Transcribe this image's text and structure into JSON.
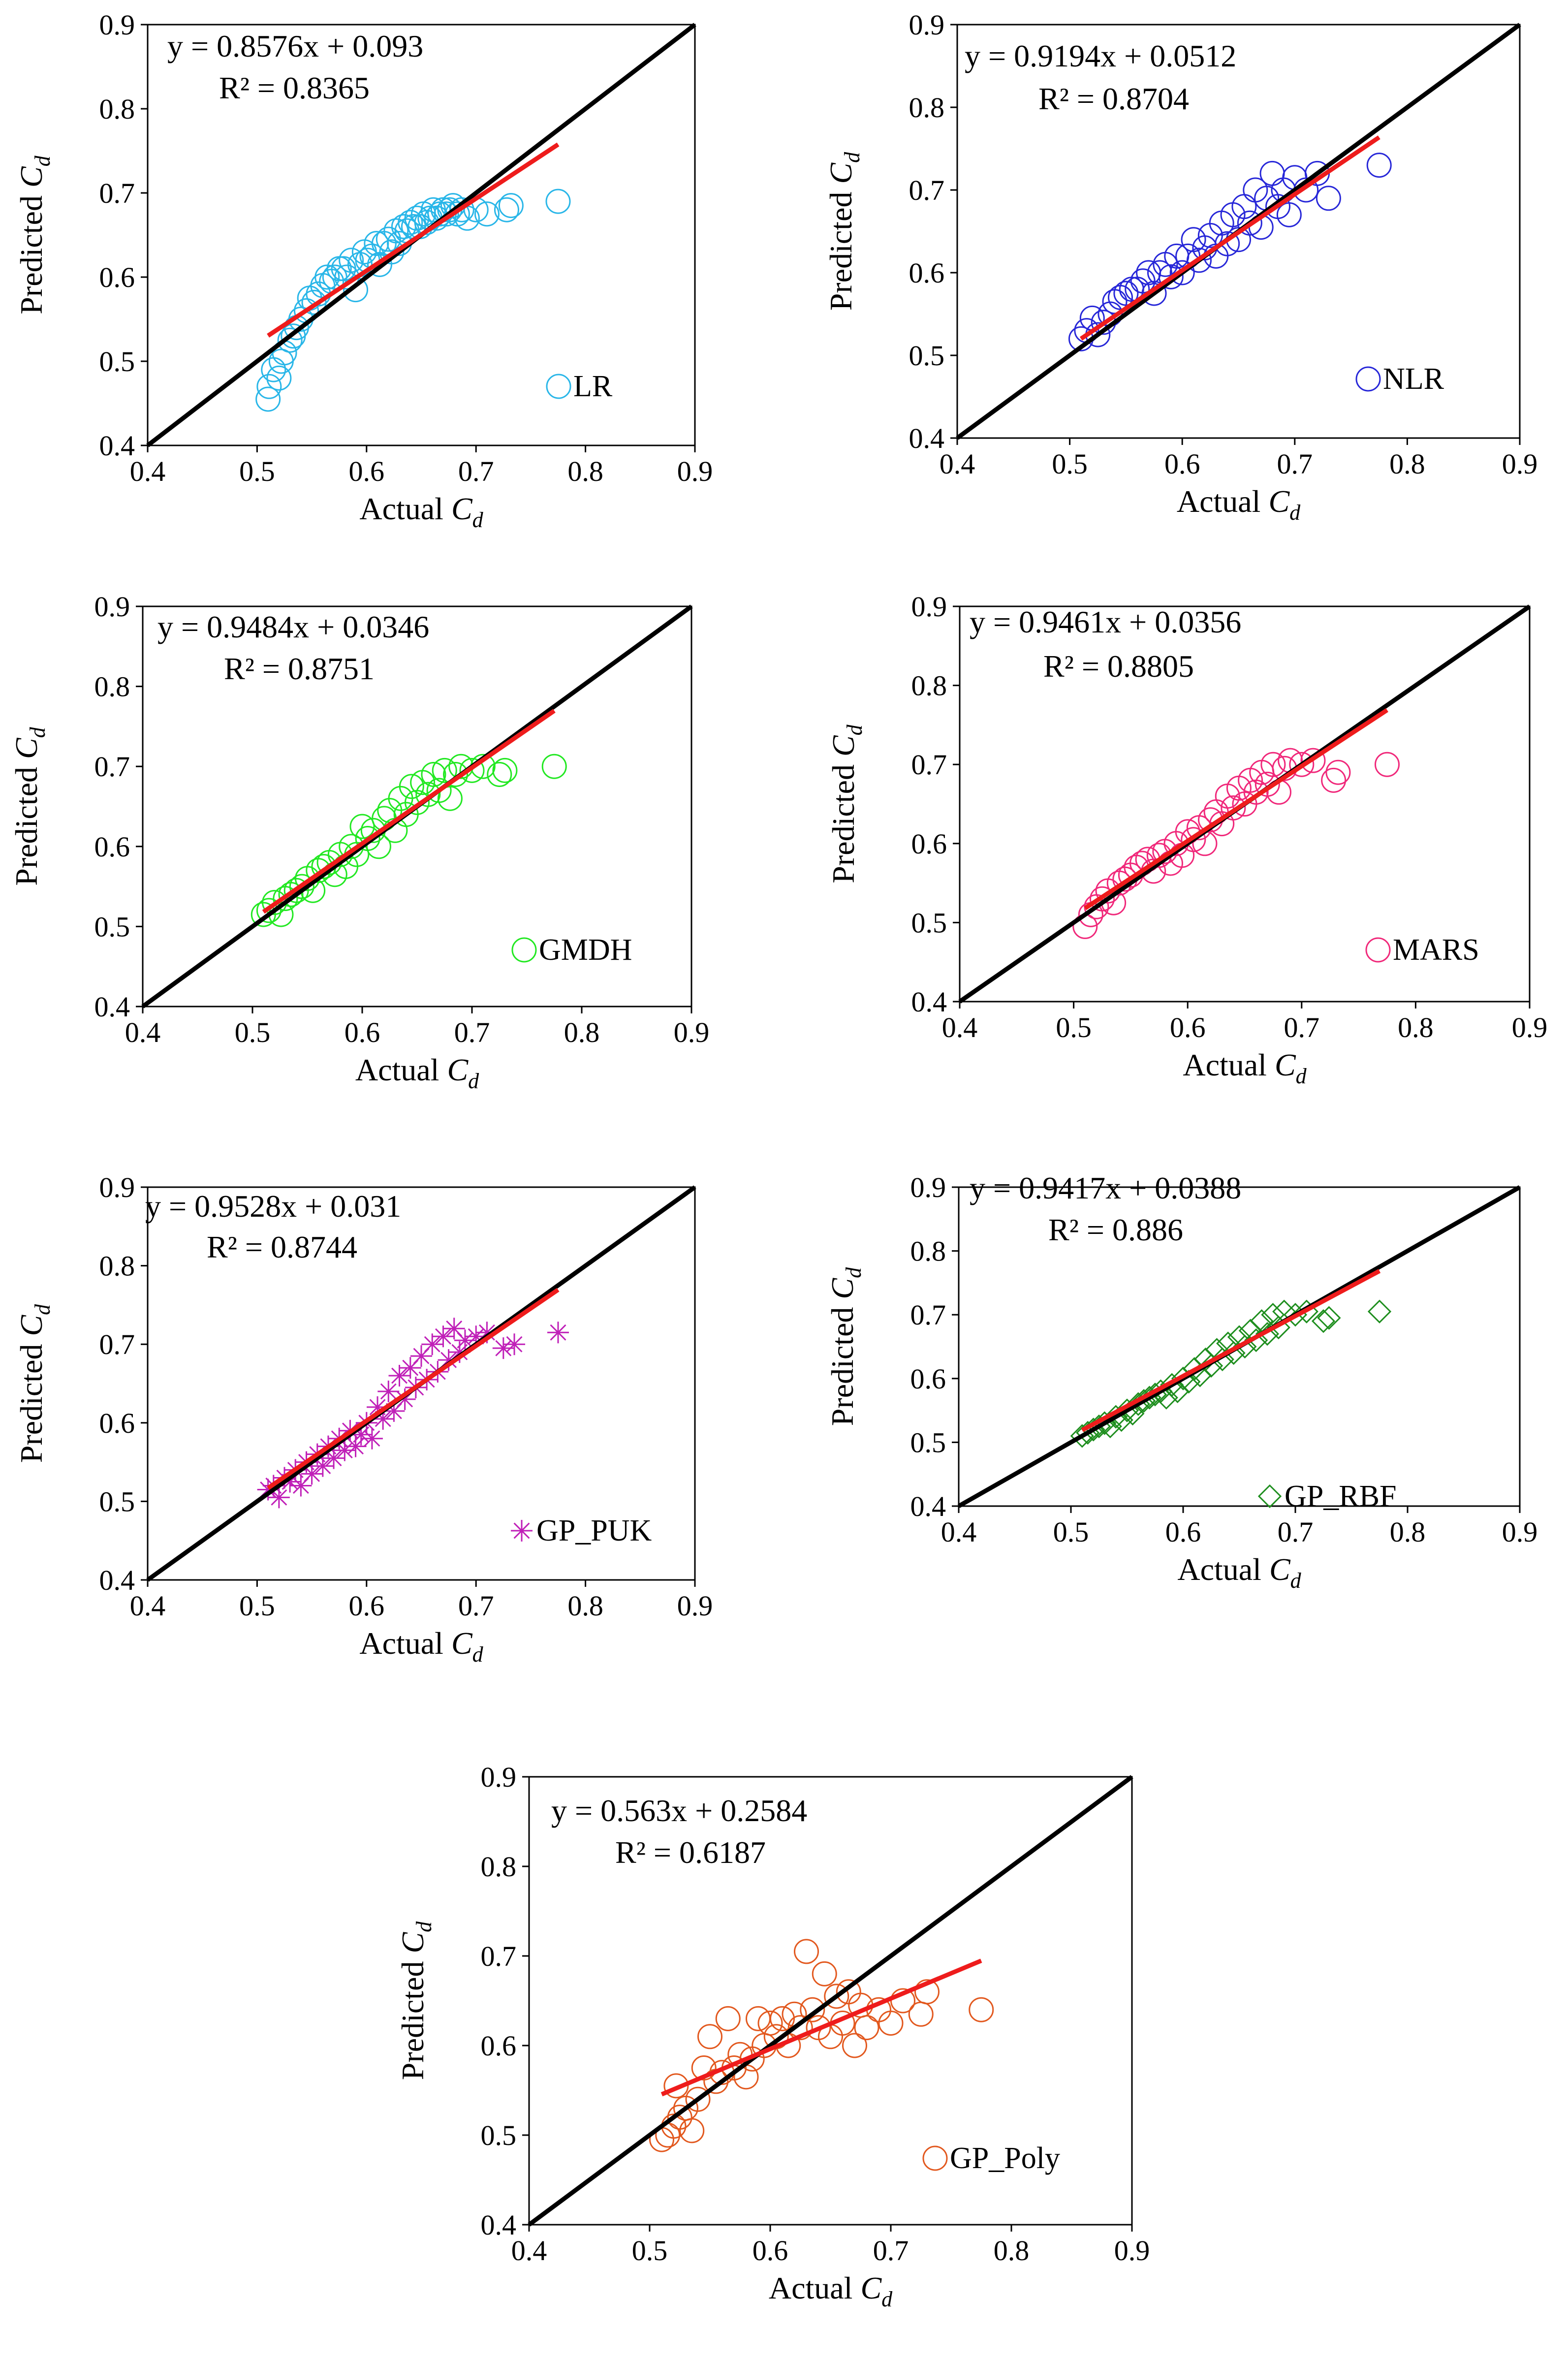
{
  "figure": {
    "description": "Predicted vs Actual Cd scatter plots for seven models"
  },
  "chart_data": [
    {
      "type": "scatter",
      "model": "LR",
      "marker": "circle",
      "color": "#29B6E8",
      "equation": "y = 0.8576x + 0.093",
      "r2": "R² = 0.8365",
      "slope": 0.8576,
      "intercept": 0.093,
      "legend": "LR",
      "xlabel": "Actual",
      "ylabel": "Predicted",
      "var_main": "C",
      "var_sub": "d",
      "xlim": [
        0.4,
        0.9
      ],
      "ylim": [
        0.4,
        0.9
      ],
      "ticks": [
        "0.4",
        "0.5",
        "0.6",
        "0.7",
        "0.8",
        "0.9"
      ],
      "fit_range": [
        0.51,
        0.775
      ],
      "x": [
        0.51,
        0.511,
        0.515,
        0.52,
        0.522,
        0.525,
        0.53,
        0.533,
        0.536,
        0.54,
        0.545,
        0.548,
        0.552,
        0.556,
        0.56,
        0.564,
        0.568,
        0.571,
        0.575,
        0.579,
        0.582,
        0.586,
        0.59,
        0.594,
        0.598,
        0.601,
        0.605,
        0.609,
        0.612,
        0.616,
        0.62,
        0.623,
        0.627,
        0.63,
        0.634,
        0.637,
        0.64,
        0.643,
        0.646,
        0.649,
        0.652,
        0.655,
        0.658,
        0.661,
        0.664,
        0.667,
        0.67,
        0.673,
        0.676,
        0.679,
        0.683,
        0.687,
        0.692,
        0.7,
        0.71,
        0.728,
        0.732,
        0.775
      ],
      "y": [
        0.455,
        0.47,
        0.49,
        0.48,
        0.5,
        0.51,
        0.525,
        0.53,
        0.54,
        0.55,
        0.56,
        0.575,
        0.57,
        0.58,
        0.59,
        0.6,
        0.595,
        0.6,
        0.61,
        0.61,
        0.6,
        0.62,
        0.585,
        0.615,
        0.63,
        0.62,
        0.625,
        0.64,
        0.615,
        0.64,
        0.645,
        0.63,
        0.655,
        0.64,
        0.66,
        0.655,
        0.665,
        0.66,
        0.67,
        0.66,
        0.675,
        0.665,
        0.67,
        0.68,
        0.67,
        0.675,
        0.68,
        0.675,
        0.68,
        0.685,
        0.675,
        0.68,
        0.67,
        0.68,
        0.675,
        0.68,
        0.685,
        0.69
      ]
    },
    {
      "type": "scatter",
      "model": "NLR",
      "marker": "circle",
      "color": "#2727D8",
      "equation": "y = 0.9194x + 0.0512",
      "r2": "R² = 0.8704",
      "slope": 0.9194,
      "intercept": 0.0512,
      "legend": "NLR",
      "xlabel": "Actual",
      "ylabel": "Predicted",
      "var_main": "C",
      "var_sub": "d",
      "xlim": [
        0.4,
        0.9
      ],
      "ylim": [
        0.4,
        0.9
      ],
      "ticks": [
        "0.4",
        "0.5",
        "0.6",
        "0.7",
        "0.8",
        "0.9"
      ],
      "fit_range": [
        0.51,
        0.775
      ],
      "x": [
        0.51,
        0.515,
        0.52,
        0.525,
        0.53,
        0.536,
        0.54,
        0.545,
        0.55,
        0.555,
        0.56,
        0.565,
        0.57,
        0.575,
        0.58,
        0.585,
        0.59,
        0.595,
        0.6,
        0.605,
        0.61,
        0.615,
        0.62,
        0.625,
        0.63,
        0.635,
        0.64,
        0.645,
        0.65,
        0.655,
        0.66,
        0.665,
        0.67,
        0.675,
        0.68,
        0.685,
        0.69,
        0.695,
        0.7,
        0.71,
        0.72,
        0.73,
        0.775
      ],
      "y": [
        0.52,
        0.53,
        0.545,
        0.525,
        0.54,
        0.55,
        0.565,
        0.57,
        0.575,
        0.58,
        0.58,
        0.59,
        0.6,
        0.575,
        0.6,
        0.61,
        0.595,
        0.62,
        0.6,
        0.62,
        0.64,
        0.615,
        0.63,
        0.645,
        0.62,
        0.66,
        0.635,
        0.67,
        0.64,
        0.68,
        0.66,
        0.7,
        0.655,
        0.69,
        0.72,
        0.68,
        0.7,
        0.67,
        0.715,
        0.7,
        0.72,
        0.69,
        0.73
      ]
    },
    {
      "type": "scatter",
      "model": "GMDH",
      "marker": "circle",
      "color": "#22E822",
      "equation": "y = 0.9484x + 0.0346",
      "r2": "R² = 0.8751",
      "slope": 0.9484,
      "intercept": 0.0346,
      "legend": "GMDH",
      "xlabel": "Actual",
      "ylabel": "Predicted",
      "var_main": "C",
      "var_sub": "d",
      "xlim": [
        0.4,
        0.9
      ],
      "ylim": [
        0.4,
        0.9
      ],
      "ticks": [
        "0.4",
        "0.5",
        "0.6",
        "0.7",
        "0.8",
        "0.9"
      ],
      "fit_range": [
        0.51,
        0.775
      ],
      "x": [
        0.51,
        0.515,
        0.52,
        0.526,
        0.53,
        0.535,
        0.54,
        0.545,
        0.55,
        0.555,
        0.56,
        0.565,
        0.57,
        0.575,
        0.58,
        0.585,
        0.59,
        0.595,
        0.6,
        0.605,
        0.61,
        0.615,
        0.62,
        0.625,
        0.63,
        0.635,
        0.64,
        0.645,
        0.65,
        0.655,
        0.66,
        0.665,
        0.67,
        0.675,
        0.68,
        0.685,
        0.69,
        0.7,
        0.71,
        0.725,
        0.73,
        0.775
      ],
      "y": [
        0.515,
        0.52,
        0.53,
        0.515,
        0.535,
        0.54,
        0.545,
        0.55,
        0.56,
        0.545,
        0.57,
        0.575,
        0.58,
        0.565,
        0.59,
        0.575,
        0.6,
        0.59,
        0.625,
        0.61,
        0.62,
        0.6,
        0.635,
        0.645,
        0.62,
        0.66,
        0.64,
        0.675,
        0.655,
        0.68,
        0.665,
        0.69,
        0.67,
        0.695,
        0.66,
        0.69,
        0.7,
        0.695,
        0.7,
        0.69,
        0.695,
        0.7
      ]
    },
    {
      "type": "scatter",
      "model": "MARS",
      "marker": "circle",
      "color": "#F0287A",
      "equation": "y = 0.9461x + 0.0356",
      "r2": "R² = 0.8805",
      "slope": 0.9461,
      "intercept": 0.0356,
      "legend": "MARS",
      "xlabel": "Actual",
      "ylabel": "Predicted",
      "var_main": "C",
      "var_sub": "d",
      "xlim": [
        0.4,
        0.9
      ],
      "ylim": [
        0.4,
        0.9
      ],
      "ticks": [
        "0.4",
        "0.5",
        "0.6",
        "0.7",
        "0.8",
        "0.9"
      ],
      "fit_range": [
        0.51,
        0.775
      ],
      "x": [
        0.51,
        0.515,
        0.52,
        0.525,
        0.53,
        0.535,
        0.54,
        0.545,
        0.55,
        0.555,
        0.56,
        0.565,
        0.57,
        0.575,
        0.58,
        0.585,
        0.59,
        0.595,
        0.6,
        0.605,
        0.61,
        0.615,
        0.62,
        0.625,
        0.63,
        0.635,
        0.64,
        0.645,
        0.65,
        0.655,
        0.66,
        0.665,
        0.67,
        0.675,
        0.68,
        0.685,
        0.69,
        0.7,
        0.71,
        0.728,
        0.732,
        0.775
      ],
      "y": [
        0.495,
        0.51,
        0.52,
        0.53,
        0.54,
        0.525,
        0.55,
        0.555,
        0.56,
        0.57,
        0.575,
        0.58,
        0.565,
        0.585,
        0.59,
        0.575,
        0.6,
        0.585,
        0.615,
        0.605,
        0.62,
        0.6,
        0.63,
        0.64,
        0.625,
        0.66,
        0.645,
        0.67,
        0.65,
        0.68,
        0.665,
        0.69,
        0.675,
        0.7,
        0.665,
        0.695,
        0.705,
        0.7,
        0.705,
        0.68,
        0.69,
        0.7
      ]
    },
    {
      "type": "scatter",
      "model": "GP_PUK",
      "marker": "asterisk",
      "color": "#C020B8",
      "equation": "y = 0.9528x + 0.031",
      "r2": "R² = 0.8744",
      "slope": 0.9528,
      "intercept": 0.031,
      "legend": "GP_PUK",
      "xlabel": "Actual",
      "ylabel": "Predicted",
      "var_main": "C",
      "var_sub": "d",
      "xlim": [
        0.4,
        0.9
      ],
      "ylim": [
        0.4,
        0.9
      ],
      "ticks": [
        "0.4",
        "0.5",
        "0.6",
        "0.7",
        "0.8",
        "0.9"
      ],
      "fit_range": [
        0.51,
        0.775
      ],
      "x": [
        0.51,
        0.515,
        0.52,
        0.525,
        0.53,
        0.535,
        0.54,
        0.545,
        0.55,
        0.555,
        0.56,
        0.565,
        0.57,
        0.575,
        0.58,
        0.585,
        0.59,
        0.595,
        0.6,
        0.605,
        0.61,
        0.615,
        0.62,
        0.625,
        0.63,
        0.635,
        0.64,
        0.645,
        0.65,
        0.655,
        0.66,
        0.665,
        0.67,
        0.675,
        0.68,
        0.685,
        0.69,
        0.7,
        0.71,
        0.725,
        0.735,
        0.775
      ],
      "y": [
        0.515,
        0.52,
        0.505,
        0.53,
        0.525,
        0.54,
        0.52,
        0.55,
        0.535,
        0.56,
        0.545,
        0.57,
        0.555,
        0.58,
        0.565,
        0.59,
        0.57,
        0.585,
        0.6,
        0.58,
        0.62,
        0.605,
        0.64,
        0.615,
        0.66,
        0.63,
        0.67,
        0.645,
        0.685,
        0.655,
        0.7,
        0.665,
        0.71,
        0.68,
        0.72,
        0.69,
        0.705,
        0.71,
        0.715,
        0.695,
        0.7,
        0.715
      ]
    },
    {
      "type": "scatter",
      "model": "GP_RBF",
      "marker": "diamond",
      "color": "#1E8E1E",
      "equation": "y = 0.9417x + 0.0388",
      "r2": "R² = 0.886",
      "slope": 0.9417,
      "intercept": 0.0388,
      "legend": "GP_RBF",
      "xlabel": "Actual",
      "ylabel": "Predicted",
      "var_main": "C",
      "var_sub": "d",
      "xlim": [
        0.4,
        0.9
      ],
      "ylim": [
        0.4,
        0.9
      ],
      "ticks": [
        "0.4",
        "0.5",
        "0.6",
        "0.7",
        "0.8",
        "0.9"
      ],
      "fit_range": [
        0.51,
        0.775
      ],
      "x": [
        0.51,
        0.515,
        0.52,
        0.525,
        0.53,
        0.535,
        0.54,
        0.545,
        0.55,
        0.555,
        0.56,
        0.565,
        0.57,
        0.575,
        0.58,
        0.585,
        0.59,
        0.595,
        0.6,
        0.605,
        0.61,
        0.615,
        0.62,
        0.625,
        0.63,
        0.635,
        0.64,
        0.645,
        0.65,
        0.655,
        0.66,
        0.665,
        0.67,
        0.675,
        0.68,
        0.685,
        0.69,
        0.7,
        0.71,
        0.725,
        0.73,
        0.775
      ],
      "y": [
        0.51,
        0.515,
        0.52,
        0.525,
        0.53,
        0.525,
        0.54,
        0.535,
        0.55,
        0.545,
        0.56,
        0.565,
        0.57,
        0.575,
        0.58,
        0.57,
        0.59,
        0.58,
        0.6,
        0.595,
        0.615,
        0.605,
        0.63,
        0.62,
        0.645,
        0.63,
        0.655,
        0.64,
        0.665,
        0.65,
        0.675,
        0.66,
        0.69,
        0.67,
        0.7,
        0.68,
        0.705,
        0.7,
        0.705,
        0.69,
        0.695,
        0.705
      ]
    },
    {
      "type": "scatter",
      "model": "GP_Poly",
      "marker": "circle",
      "color": "#E2581E",
      "equation": "y = 0.563x + 0.2584",
      "r2": "R² = 0.6187",
      "slope": 0.563,
      "intercept": 0.2584,
      "legend": "GP_Poly",
      "xlabel": "Actual",
      "ylabel": "Predicted",
      "var_main": "C",
      "var_sub": "d",
      "xlim": [
        0.4,
        0.9
      ],
      "ylim": [
        0.4,
        0.9
      ],
      "ticks": [
        "0.4",
        "0.5",
        "0.6",
        "0.7",
        "0.8",
        "0.9"
      ],
      "fit_range": [
        0.51,
        0.775
      ],
      "x": [
        0.51,
        0.515,
        0.52,
        0.522,
        0.525,
        0.53,
        0.535,
        0.54,
        0.545,
        0.55,
        0.555,
        0.56,
        0.565,
        0.57,
        0.575,
        0.58,
        0.585,
        0.59,
        0.595,
        0.6,
        0.605,
        0.61,
        0.615,
        0.62,
        0.625,
        0.63,
        0.635,
        0.64,
        0.645,
        0.65,
        0.655,
        0.66,
        0.665,
        0.67,
        0.675,
        0.68,
        0.69,
        0.7,
        0.71,
        0.725,
        0.73,
        0.775
      ],
      "y": [
        0.495,
        0.5,
        0.51,
        0.555,
        0.52,
        0.53,
        0.505,
        0.54,
        0.575,
        0.61,
        0.56,
        0.57,
        0.63,
        0.575,
        0.59,
        0.565,
        0.585,
        0.63,
        0.6,
        0.625,
        0.61,
        0.63,
        0.6,
        0.635,
        0.62,
        0.705,
        0.64,
        0.62,
        0.68,
        0.61,
        0.655,
        0.625,
        0.66,
        0.6,
        0.645,
        0.62,
        0.64,
        0.625,
        0.65,
        0.635,
        0.66,
        0.64
      ]
    }
  ]
}
